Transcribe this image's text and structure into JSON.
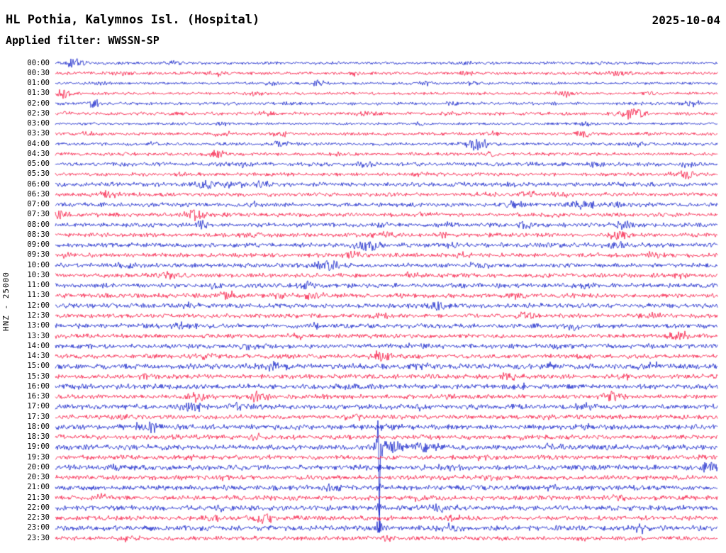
{
  "header": {
    "station": "HL Pothia, Kalymnos Isl. (Hospital)",
    "date": "2025-10-04",
    "filter": "Applied filter: WWSSN-SP",
    "channel": "HNZ - 25000"
  },
  "colors": {
    "blue": "#0e1dc8",
    "red": "#f6123e"
  },
  "chart_data": {
    "type": "line",
    "subtype": "helicorder-seismogram",
    "title": "HL Pothia, Kalymnos Isl. (Hospital)",
    "date": "2025-10-04",
    "channel": "HNZ",
    "gain": "25000",
    "filter": "WWSSN-SP",
    "row_duration_minutes": 30,
    "x_range": [
      "00:00",
      "23:30"
    ],
    "legend": "alternating blue/red 30-minute traces",
    "major_event": {
      "row": "19:00",
      "position_fraction": 0.489,
      "relative_amplitude": 120
    },
    "rows": [
      {
        "t": "00:00",
        "color": "blue",
        "noise": 1.6,
        "events": [
          [
            0.03,
            6,
            10
          ],
          [
            0.18,
            3,
            12
          ],
          [
            0.62,
            3,
            10
          ],
          [
            0.83,
            2.5,
            8
          ]
        ]
      },
      {
        "t": "00:30",
        "color": "red",
        "noise": 1.8,
        "events": [
          [
            0.1,
            3,
            14
          ],
          [
            0.25,
            3.5,
            12
          ],
          [
            0.45,
            3,
            10
          ],
          [
            0.62,
            3,
            10
          ],
          [
            0.85,
            4,
            12
          ]
        ]
      },
      {
        "t": "01:00",
        "color": "blue",
        "noise": 1.5,
        "events": [
          [
            0.07,
            3,
            8
          ],
          [
            0.33,
            3,
            10
          ],
          [
            0.4,
            4,
            10
          ],
          [
            0.56,
            3,
            8
          ],
          [
            0.63,
            3,
            8
          ]
        ]
      },
      {
        "t": "01:30",
        "color": "red",
        "noise": 1.6,
        "events": [
          [
            0.013,
            7,
            8
          ],
          [
            0.3,
            3,
            10
          ],
          [
            0.77,
            4,
            12
          ],
          [
            0.9,
            3,
            8
          ]
        ]
      },
      {
        "t": "02:00",
        "color": "blue",
        "noise": 1.7,
        "events": [
          [
            0.056,
            6,
            9
          ],
          [
            0.35,
            3,
            10
          ],
          [
            0.6,
            3,
            8
          ],
          [
            0.96,
            4,
            10
          ]
        ]
      },
      {
        "t": "02:30",
        "color": "red",
        "noise": 1.8,
        "events": [
          [
            0.02,
            3,
            8
          ],
          [
            0.32,
            3,
            10
          ],
          [
            0.47,
            4,
            12
          ],
          [
            0.6,
            3,
            8
          ],
          [
            0.87,
            8,
            14
          ]
        ]
      },
      {
        "t": "03:00",
        "color": "blue",
        "noise": 1.4,
        "events": [
          [
            0.25,
            2.5,
            10
          ],
          [
            0.55,
            2.5,
            8
          ],
          [
            0.8,
            2.5,
            8
          ]
        ]
      },
      {
        "t": "03:30",
        "color": "red",
        "noise": 1.7,
        "events": [
          [
            0.05,
            3,
            8
          ],
          [
            0.25,
            4,
            10
          ],
          [
            0.34,
            4,
            10
          ],
          [
            0.66,
            3,
            8
          ],
          [
            0.8,
            4.5,
            10
          ],
          [
            0.9,
            3,
            8
          ]
        ]
      },
      {
        "t": "04:00",
        "color": "blue",
        "noise": 1.8,
        "events": [
          [
            0.15,
            3,
            10
          ],
          [
            0.34,
            5,
            12
          ],
          [
            0.636,
            9,
            12
          ],
          [
            0.88,
            3.5,
            10
          ]
        ]
      },
      {
        "t": "04:30",
        "color": "red",
        "noise": 1.8,
        "events": [
          [
            0.11,
            3,
            8
          ],
          [
            0.243,
            6,
            12
          ],
          [
            0.44,
            3,
            10
          ],
          [
            0.66,
            3.5,
            10
          ]
        ]
      },
      {
        "t": "05:00",
        "color": "blue",
        "noise": 2.2,
        "events": [
          [
            0.11,
            3.5,
            12
          ],
          [
            0.28,
            3.5,
            12
          ],
          [
            0.47,
            3.5,
            12
          ],
          [
            0.81,
            4,
            12
          ],
          [
            0.96,
            4,
            10
          ]
        ]
      },
      {
        "t": "05:30",
        "color": "red",
        "noise": 2.0,
        "events": [
          [
            0.19,
            3,
            10
          ],
          [
            0.55,
            3,
            10
          ],
          [
            0.95,
            6,
            12
          ]
        ]
      },
      {
        "t": "06:00",
        "color": "blue",
        "noise": 2.4,
        "events": [
          [
            0.227,
            6,
            10
          ],
          [
            0.27,
            5,
            10
          ],
          [
            0.31,
            4,
            10
          ],
          [
            0.7,
            3,
            10
          ]
        ]
      },
      {
        "t": "06:30",
        "color": "red",
        "noise": 2.2,
        "events": [
          [
            0.077,
            5,
            10
          ],
          [
            0.65,
            4,
            10
          ],
          [
            0.714,
            6,
            10
          ],
          [
            0.76,
            5,
            10
          ]
        ]
      },
      {
        "t": "07:00",
        "color": "blue",
        "noise": 2.4,
        "events": [
          [
            0.3,
            3.5,
            12
          ],
          [
            0.687,
            5,
            12
          ],
          [
            0.794,
            7,
            14
          ],
          [
            0.85,
            5,
            12
          ]
        ]
      },
      {
        "t": "07:30",
        "color": "red",
        "noise": 2.3,
        "events": [
          [
            0.008,
            8,
            12
          ],
          [
            0.214,
            8,
            12
          ],
          [
            0.56,
            4,
            10
          ],
          [
            0.75,
            3.5,
            10
          ]
        ]
      },
      {
        "t": "08:00",
        "color": "blue",
        "noise": 2.4,
        "events": [
          [
            0.222,
            6,
            10
          ],
          [
            0.49,
            4,
            10
          ],
          [
            0.59,
            4,
            10
          ],
          [
            0.71,
            5,
            10
          ],
          [
            0.86,
            5,
            12
          ]
        ]
      },
      {
        "t": "08:30",
        "color": "red",
        "noise": 2.3,
        "events": [
          [
            0.29,
            4,
            10
          ],
          [
            0.5,
            5,
            12
          ],
          [
            0.585,
            4,
            10
          ],
          [
            0.85,
            6,
            12
          ]
        ]
      },
      {
        "t": "09:00",
        "color": "blue",
        "noise": 2.6,
        "events": [
          [
            0.473,
            8,
            12
          ],
          [
            0.6,
            4,
            10
          ],
          [
            0.85,
            5,
            12
          ]
        ]
      },
      {
        "t": "09:30",
        "color": "red",
        "noise": 2.4,
        "events": [
          [
            0.02,
            4,
            10
          ],
          [
            0.446,
            5,
            12
          ],
          [
            0.61,
            4,
            10
          ],
          [
            0.9,
            3.5,
            10
          ]
        ]
      },
      {
        "t": "10:00",
        "color": "blue",
        "noise": 2.5,
        "events": [
          [
            0.11,
            4,
            10
          ],
          [
            0.414,
            7,
            14
          ],
          [
            0.64,
            4,
            10
          ]
        ]
      },
      {
        "t": "10:30",
        "color": "red",
        "noise": 2.4,
        "events": [
          [
            0.168,
            5,
            12
          ],
          [
            0.54,
            4,
            10
          ],
          [
            0.94,
            4,
            10
          ]
        ]
      },
      {
        "t": "11:00",
        "color": "blue",
        "noise": 2.6,
        "events": [
          [
            0.24,
            4,
            10
          ],
          [
            0.377,
            5,
            12
          ],
          [
            0.8,
            4,
            10
          ]
        ]
      },
      {
        "t": "11:30",
        "color": "red",
        "noise": 2.5,
        "events": [
          [
            0.259,
            6,
            12
          ],
          [
            0.34,
            5,
            10
          ],
          [
            0.39,
            5,
            10
          ],
          [
            0.7,
            4,
            10
          ]
        ]
      },
      {
        "t": "12:00",
        "color": "blue",
        "noise": 2.6,
        "events": [
          [
            0.2,
            3.5,
            10
          ],
          [
            0.575,
            7,
            12
          ],
          [
            0.71,
            4,
            10
          ]
        ]
      },
      {
        "t": "12:30",
        "color": "red",
        "noise": 2.4,
        "events": [
          [
            0.49,
            4,
            10
          ],
          [
            0.71,
            5,
            12
          ],
          [
            0.9,
            4,
            10
          ]
        ]
      },
      {
        "t": "13:00",
        "color": "blue",
        "noise": 2.6,
        "events": [
          [
            0.19,
            5,
            12
          ],
          [
            0.4,
            3.5,
            10
          ],
          [
            0.78,
            5,
            12
          ]
        ]
      },
      {
        "t": "13:30",
        "color": "red",
        "noise": 2.4,
        "events": [
          [
            0.37,
            3.5,
            10
          ],
          [
            0.944,
            7,
            12
          ]
        ]
      },
      {
        "t": "14:00",
        "color": "blue",
        "noise": 2.7,
        "events": [
          [
            0.29,
            4,
            12
          ],
          [
            0.55,
            3.5,
            10
          ],
          [
            0.75,
            3.5,
            10
          ]
        ]
      },
      {
        "t": "14:30",
        "color": "red",
        "noise": 2.5,
        "events": [
          [
            0.23,
            3.5,
            10
          ],
          [
            0.49,
            7,
            12
          ],
          [
            0.8,
            3.5,
            10
          ]
        ]
      },
      {
        "t": "15:00",
        "color": "blue",
        "noise": 3.0,
        "events": [
          [
            0.334,
            6,
            12
          ],
          [
            0.55,
            4,
            12
          ],
          [
            0.75,
            4,
            12
          ],
          [
            0.9,
            4,
            10
          ]
        ]
      },
      {
        "t": "15:30",
        "color": "red",
        "noise": 2.5,
        "events": [
          [
            0.14,
            3.5,
            10
          ],
          [
            0.687,
            5,
            12
          ],
          [
            0.86,
            3.5,
            10
          ]
        ]
      },
      {
        "t": "16:00",
        "color": "blue",
        "noise": 2.8,
        "events": [
          [
            0.035,
            4,
            10
          ],
          [
            0.45,
            4,
            12
          ],
          [
            0.7,
            4,
            12
          ]
        ]
      },
      {
        "t": "16:30",
        "color": "red",
        "noise": 2.5,
        "events": [
          [
            0.216,
            6,
            12
          ],
          [
            0.307,
            6,
            12
          ],
          [
            0.6,
            4,
            10
          ],
          [
            0.837,
            8,
            14
          ]
        ]
      },
      {
        "t": "17:00",
        "color": "blue",
        "noise": 2.9,
        "events": [
          [
            0.21,
            6,
            12
          ],
          [
            0.27,
            5,
            12
          ],
          [
            0.55,
            4,
            12
          ],
          [
            0.8,
            4,
            10
          ]
        ]
      },
      {
        "t": "17:30",
        "color": "red",
        "noise": 2.5,
        "events": [
          [
            0.1,
            3.5,
            10
          ],
          [
            0.45,
            4,
            10
          ],
          [
            0.75,
            4,
            10
          ]
        ]
      },
      {
        "t": "18:00",
        "color": "blue",
        "noise": 2.9,
        "events": [
          [
            0.136,
            8,
            14
          ],
          [
            0.5,
            4,
            12
          ],
          [
            0.8,
            4,
            12
          ]
        ]
      },
      {
        "t": "18:30",
        "color": "red",
        "noise": 2.6,
        "events": [
          [
            0.3,
            4,
            10
          ],
          [
            0.7,
            4,
            10
          ]
        ]
      },
      {
        "t": "19:00",
        "color": "blue",
        "noise": 3.0,
        "events": [
          [
            0.489,
            120,
            2.5
          ],
          [
            0.5,
            10,
            20
          ],
          [
            0.56,
            6,
            20
          ],
          [
            0.75,
            4,
            12
          ]
        ]
      },
      {
        "t": "19:30",
        "color": "red",
        "noise": 2.6,
        "events": [
          [
            0.2,
            3.5,
            10
          ],
          [
            0.65,
            4,
            10
          ]
        ]
      },
      {
        "t": "20:00",
        "color": "blue",
        "noise": 3.0,
        "events": [
          [
            0.09,
            4,
            12
          ],
          [
            0.489,
            6,
            2
          ],
          [
            0.6,
            4,
            12
          ],
          [
            0.985,
            7,
            10
          ]
        ]
      },
      {
        "t": "20:30",
        "color": "red",
        "noise": 2.6,
        "events": [
          [
            0.25,
            3.5,
            10
          ],
          [
            0.655,
            4.5,
            10
          ]
        ]
      },
      {
        "t": "21:00",
        "color": "blue",
        "noise": 2.9,
        "events": [
          [
            0.42,
            5,
            12
          ],
          [
            0.489,
            5,
            2
          ],
          [
            0.75,
            4,
            12
          ]
        ]
      },
      {
        "t": "21:30",
        "color": "red",
        "noise": 2.6,
        "events": [
          [
            0.066,
            4,
            10
          ],
          [
            0.55,
            4,
            10
          ],
          [
            0.85,
            3.5,
            10
          ]
        ]
      },
      {
        "t": "22:00",
        "color": "blue",
        "noise": 2.9,
        "events": [
          [
            0.25,
            4,
            12
          ],
          [
            0.489,
            10,
            2
          ],
          [
            0.58,
            6,
            12
          ]
        ]
      },
      {
        "t": "22:30",
        "color": "red",
        "noise": 2.6,
        "events": [
          [
            0.24,
            4,
            10
          ],
          [
            0.318,
            7,
            12
          ],
          [
            0.6,
            3.5,
            10
          ]
        ]
      },
      {
        "t": "23:00",
        "color": "blue",
        "noise": 2.9,
        "events": [
          [
            0.489,
            16,
            2
          ],
          [
            0.6,
            5,
            12
          ],
          [
            0.885,
            5,
            10
          ]
        ]
      },
      {
        "t": "23:30",
        "color": "red",
        "noise": 2.3,
        "events": [
          [
            0.11,
            3,
            10
          ],
          [
            0.5,
            3,
            10
          ],
          [
            0.8,
            3,
            10
          ]
        ]
      }
    ]
  }
}
